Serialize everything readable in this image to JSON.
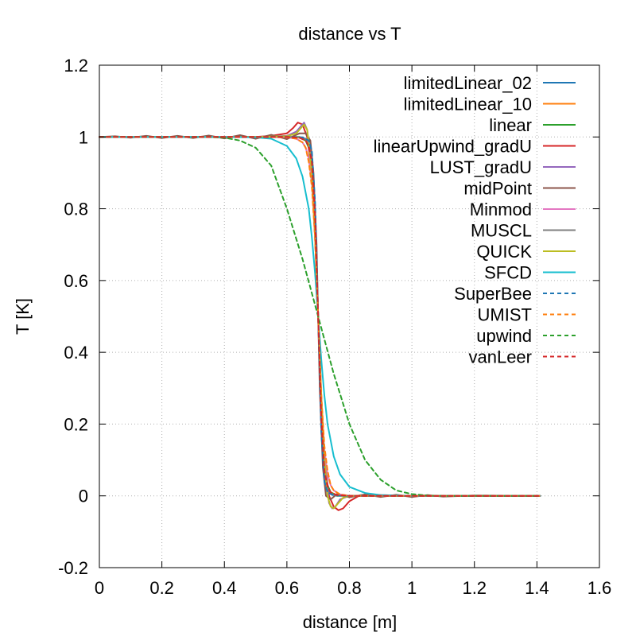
{
  "chart_data": {
    "type": "line",
    "title": "distance vs T",
    "xlabel": "distance [m]",
    "ylabel": "T [K]",
    "xlim": [
      0,
      1.6
    ],
    "ylim": [
      -0.2,
      1.2
    ],
    "xticks": [
      0,
      0.2,
      0.4,
      0.6,
      0.8,
      1,
      1.2,
      1.4,
      1.6
    ],
    "xtick_labels": [
      "0",
      "0.2",
      "0.4",
      "0.6",
      "0.8",
      "1",
      "1.2",
      "1.4",
      "1.6"
    ],
    "yticks": [
      -0.2,
      0,
      0.2,
      0.4,
      0.6,
      0.8,
      1,
      1.2
    ],
    "ytick_labels": [
      "-0.2",
      "0",
      "0.2",
      "0.4",
      "0.6",
      "0.8",
      "1",
      "1.2"
    ],
    "grid": true,
    "legend_position": "top-right",
    "series": [
      {
        "name": "limitedLinear_02",
        "color": "#1f77b4",
        "dash": "solid",
        "x": [
          0,
          0.5,
          0.6,
          0.64,
          0.66,
          0.67,
          0.68,
          0.69,
          0.7,
          0.71,
          0.72,
          0.73,
          0.74,
          0.76,
          0.8,
          1.0,
          1.41
        ],
        "y": [
          1,
          1,
          1,
          0.999,
          0.995,
          0.985,
          0.95,
          0.8,
          0.5,
          0.2,
          0.05,
          0.015,
          0.005,
          0.001,
          0,
          0,
          0
        ]
      },
      {
        "name": "limitedLinear_10",
        "color": "#ff7f0e",
        "dash": "solid",
        "x": [
          0,
          0.5,
          0.6,
          0.64,
          0.66,
          0.67,
          0.68,
          0.69,
          0.7,
          0.71,
          0.72,
          0.73,
          0.74,
          0.76,
          0.8,
          1.0,
          1.41
        ],
        "y": [
          1,
          1,
          1,
          0.998,
          0.99,
          0.975,
          0.93,
          0.78,
          0.5,
          0.22,
          0.07,
          0.025,
          0.01,
          0.002,
          0,
          0,
          0
        ]
      },
      {
        "name": "linear",
        "color": "#2ca02c",
        "dash": "solid",
        "x": [
          0,
          0.5,
          0.6,
          0.64,
          0.66,
          0.67,
          0.68,
          0.69,
          0.7,
          0.71,
          0.72,
          0.73,
          0.74,
          0.76,
          0.8,
          1.0,
          1.41
        ],
        "y": [
          1,
          1,
          1,
          1.0,
          0.99,
          0.97,
          0.93,
          0.78,
          0.5,
          0.22,
          0.07,
          0.03,
          0.01,
          0.0,
          0,
          0,
          0
        ]
      },
      {
        "name": "linearUpwind_gradU",
        "color": "#d62728",
        "dash": "solid",
        "x": [
          0,
          0.5,
          0.55,
          0.6,
          0.62,
          0.635,
          0.65,
          0.665,
          0.68,
          0.69,
          0.7,
          0.71,
          0.72,
          0.735,
          0.75,
          0.765,
          0.78,
          0.8,
          0.83,
          0.9,
          1.0,
          1.41
        ],
        "y": [
          1,
          1,
          1.003,
          1.01,
          1.025,
          1.04,
          1.035,
          1.0,
          0.9,
          0.72,
          0.5,
          0.28,
          0.1,
          0.0,
          -0.03,
          -0.04,
          -0.035,
          -0.015,
          0.0,
          0.002,
          0,
          0
        ]
      },
      {
        "name": "LUST_gradU",
        "color": "#9467bd",
        "dash": "solid",
        "x": [
          0,
          0.5,
          0.6,
          0.63,
          0.645,
          0.655,
          0.665,
          0.68,
          0.69,
          0.7,
          0.71,
          0.72,
          0.735,
          0.745,
          0.755,
          0.77,
          0.8,
          1.0,
          1.41
        ],
        "y": [
          1,
          1,
          1.003,
          1.015,
          1.03,
          1.04,
          1.02,
          0.9,
          0.72,
          0.5,
          0.28,
          0.1,
          -0.02,
          -0.035,
          -0.03,
          -0.01,
          0.0,
          0,
          0
        ]
      },
      {
        "name": "midPoint",
        "color": "#8c564b",
        "dash": "solid",
        "x": [
          0,
          0.05,
          0.1,
          0.15,
          0.2,
          0.25,
          0.3,
          0.35,
          0.4,
          0.45,
          0.5,
          0.55,
          0.6,
          0.64,
          0.66,
          0.675,
          0.685,
          0.695,
          0.7,
          0.705,
          0.715,
          0.725,
          0.74,
          0.76,
          0.8,
          0.85,
          0.9,
          0.95,
          1.0,
          1.05,
          1.1,
          1.2,
          1.41
        ],
        "y": [
          1,
          1.002,
          0.998,
          1.003,
          0.997,
          1.003,
          0.997,
          1.004,
          0.996,
          1.005,
          0.995,
          1.006,
          0.994,
          1.01,
          1.01,
          0.99,
          0.9,
          0.7,
          0.5,
          0.3,
          0.08,
          0.0,
          -0.01,
          0.005,
          -0.004,
          0.004,
          -0.003,
          0.003,
          -0.003,
          0.002,
          -0.002,
          0.001,
          0
        ]
      },
      {
        "name": "Minmod",
        "color": "#e377c2",
        "dash": "solid",
        "x": [
          0,
          0.5,
          0.6,
          0.63,
          0.65,
          0.66,
          0.67,
          0.68,
          0.69,
          0.7,
          0.71,
          0.72,
          0.73,
          0.74,
          0.75,
          0.77,
          0.8,
          1.0,
          1.41
        ],
        "y": [
          1,
          1,
          0.999,
          0.995,
          0.985,
          0.97,
          0.94,
          0.87,
          0.72,
          0.5,
          0.28,
          0.13,
          0.06,
          0.03,
          0.015,
          0.004,
          0,
          0,
          0
        ]
      },
      {
        "name": "MUSCL",
        "color": "#7f7f7f",
        "dash": "solid",
        "x": [
          0,
          0.5,
          0.6,
          0.64,
          0.66,
          0.67,
          0.68,
          0.69,
          0.7,
          0.71,
          0.72,
          0.73,
          0.74,
          0.76,
          0.8,
          1.0,
          1.41
        ],
        "y": [
          1,
          1,
          1,
          0.999,
          0.994,
          0.98,
          0.94,
          0.79,
          0.5,
          0.21,
          0.06,
          0.02,
          0.006,
          0.001,
          0,
          0,
          0
        ]
      },
      {
        "name": "QUICK",
        "color": "#bcbd22",
        "dash": "solid",
        "x": [
          0,
          0.5,
          0.6,
          0.63,
          0.645,
          0.655,
          0.665,
          0.68,
          0.69,
          0.7,
          0.71,
          0.72,
          0.73,
          0.74,
          0.75,
          0.765,
          0.78,
          0.8,
          1.0,
          1.41
        ],
        "y": [
          1,
          1,
          1.002,
          1.01,
          1.025,
          1.035,
          1.02,
          0.9,
          0.72,
          0.5,
          0.28,
          0.1,
          0.0,
          -0.03,
          -0.035,
          -0.02,
          -0.005,
          0,
          0,
          0
        ]
      },
      {
        "name": "SFCD",
        "color": "#17becf",
        "dash": "solid",
        "x": [
          0,
          0.4,
          0.5,
          0.55,
          0.6,
          0.63,
          0.65,
          0.67,
          0.68,
          0.69,
          0.7,
          0.71,
          0.72,
          0.73,
          0.75,
          0.77,
          0.8,
          0.85,
          0.9,
          1.0,
          1.41
        ],
        "y": [
          1,
          1,
          0.999,
          0.995,
          0.975,
          0.94,
          0.89,
          0.8,
          0.72,
          0.62,
          0.5,
          0.38,
          0.28,
          0.2,
          0.11,
          0.06,
          0.025,
          0.008,
          0.002,
          0,
          0
        ]
      },
      {
        "name": "SuperBee",
        "color": "#1f77b4",
        "dash": "dashed",
        "x": [
          0,
          0.5,
          0.6,
          0.65,
          0.67,
          0.68,
          0.69,
          0.7,
          0.71,
          0.72,
          0.73,
          0.75,
          0.8,
          1.0,
          1.41
        ],
        "y": [
          1,
          1,
          1,
          0.999,
          0.99,
          0.96,
          0.82,
          0.5,
          0.18,
          0.04,
          0.01,
          0.001,
          0,
          0,
          0
        ]
      },
      {
        "name": "UMIST",
        "color": "#ff7f0e",
        "dash": "dashed",
        "x": [
          0,
          0.5,
          0.6,
          0.63,
          0.65,
          0.66,
          0.67,
          0.68,
          0.69,
          0.7,
          0.71,
          0.72,
          0.73,
          0.74,
          0.75,
          0.77,
          0.8,
          1.0,
          1.41
        ],
        "y": [
          1,
          1,
          0.999,
          0.995,
          0.985,
          0.97,
          0.93,
          0.86,
          0.72,
          0.5,
          0.28,
          0.14,
          0.07,
          0.03,
          0.015,
          0.004,
          0,
          0,
          0
        ]
      },
      {
        "name": "upwind",
        "color": "#2ca02c",
        "dash": "dashed",
        "x": [
          0,
          0.35,
          0.4,
          0.45,
          0.5,
          0.55,
          0.6,
          0.625,
          0.65,
          0.675,
          0.7,
          0.725,
          0.75,
          0.775,
          0.8,
          0.85,
          0.9,
          0.95,
          1.0,
          1.05,
          1.1,
          1.41
        ],
        "y": [
          1,
          1,
          0.998,
          0.99,
          0.97,
          0.92,
          0.8,
          0.73,
          0.66,
          0.58,
          0.5,
          0.42,
          0.34,
          0.27,
          0.2,
          0.1,
          0.045,
          0.015,
          0.005,
          0.001,
          0,
          0
        ]
      },
      {
        "name": "vanLeer",
        "color": "#d62728",
        "dash": "dashed",
        "x": [
          0,
          0.5,
          0.6,
          0.64,
          0.66,
          0.67,
          0.68,
          0.69,
          0.7,
          0.71,
          0.72,
          0.73,
          0.74,
          0.76,
          0.8,
          1.0,
          1.41
        ],
        "y": [
          1,
          1,
          1,
          0.998,
          0.99,
          0.975,
          0.93,
          0.78,
          0.5,
          0.22,
          0.07,
          0.025,
          0.01,
          0.002,
          0,
          0,
          0
        ]
      }
    ]
  }
}
